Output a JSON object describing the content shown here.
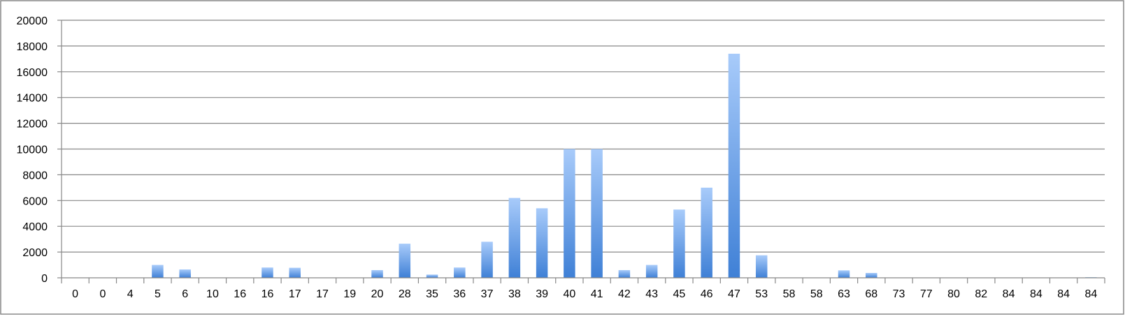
{
  "chart_data": {
    "type": "bar",
    "title": "",
    "xlabel": "",
    "ylabel": "",
    "ylim": [
      0,
      20000
    ],
    "yticks": [
      0,
      2000,
      4000,
      6000,
      8000,
      10000,
      12000,
      14000,
      16000,
      18000,
      20000
    ],
    "grid": true,
    "legend": "none",
    "colors": {
      "bar_light": "#a8cbfa",
      "bar_dark": "#3f80d6",
      "grid": "#888888",
      "frame": "#888888"
    },
    "categories": [
      "0",
      "0",
      "4",
      "5",
      "6",
      "10",
      "16",
      "16",
      "17",
      "17",
      "19",
      "20",
      "28",
      "35",
      "36",
      "37",
      "38",
      "39",
      "40",
      "41",
      "42",
      "43",
      "45",
      "46",
      "47",
      "53",
      "58",
      "58",
      "63",
      "68",
      "73",
      "77",
      "80",
      "82",
      "84",
      "84",
      "84",
      "84"
    ],
    "values": [
      0,
      0,
      0,
      1000,
      650,
      0,
      0,
      800,
      780,
      0,
      0,
      600,
      2650,
      250,
      800,
      2800,
      6200,
      5400,
      10000,
      10000,
      600,
      1000,
      5300,
      7000,
      17400,
      1750,
      0,
      0,
      580,
      380,
      0,
      0,
      0,
      0,
      0,
      0,
      0,
      50
    ]
  }
}
